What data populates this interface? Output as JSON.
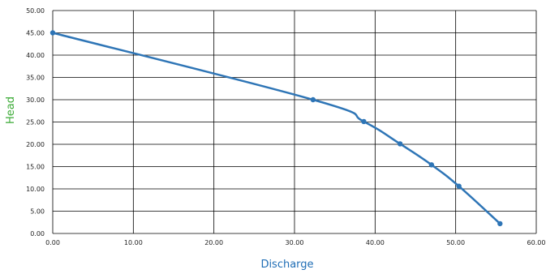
{
  "chart_data": {
    "type": "line",
    "xlabel": "Discharge",
    "ylabel": "Head",
    "xlim": [
      0,
      60
    ],
    "ylim": [
      0,
      50
    ],
    "x_ticks": [
      "0.00",
      "10.00",
      "20.00",
      "30.00",
      "40.00",
      "50.00",
      "60.00"
    ],
    "y_ticks": [
      "0.00",
      "5.00",
      "10.00",
      "15.00",
      "20.00",
      "25.00",
      "30.00",
      "35.00",
      "40.00",
      "45.00",
      "50.00"
    ],
    "grid": true,
    "legend": "none",
    "series": [
      {
        "points": [
          {
            "x": 0.0,
            "y": 45.0
          },
          {
            "x": 32.3,
            "y": 30.0
          },
          {
            "x": 38.6,
            "y": 25.1
          },
          {
            "x": 43.1,
            "y": 20.1
          },
          {
            "x": 47.0,
            "y": 15.4
          },
          {
            "x": 50.4,
            "y": 10.6
          },
          {
            "x": 55.5,
            "y": 2.2
          }
        ]
      }
    ],
    "colors": {
      "line": "#2e75b6",
      "marker": "#2e75b6",
      "xlabel": "#1f6db5",
      "ylabel": "#3aaa35",
      "grid": "#000000",
      "tick_text": "#222222"
    }
  }
}
